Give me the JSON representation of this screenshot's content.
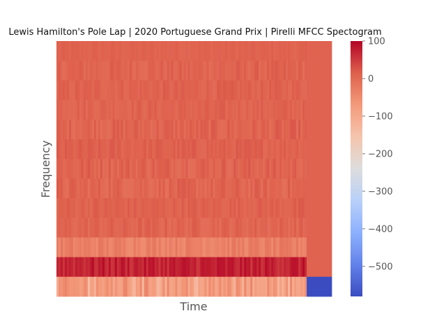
{
  "chart_data": {
    "type": "heatmap",
    "title": "Lewis Hamilton's Pole Lap | 2020 Portuguese Grand Prix | Pirelli MFCC Spectogram",
    "xlabel": "Time",
    "ylabel": "Frequency",
    "colormap": "coolwarm",
    "colorbar": {
      "min": -580,
      "max": 100,
      "ticks": [
        100,
        0,
        -100,
        -200,
        -300,
        -400,
        -500
      ],
      "tick_labels": [
        "100",
        "0",
        "−100",
        "−200",
        "−300",
        "−400",
        "−500"
      ]
    },
    "n_time_frames": 120,
    "padded_frames": 12,
    "rows_top_to_bottom": [
      {
        "mean": 10,
        "var": 3
      },
      {
        "mean": 8,
        "var": 6
      },
      {
        "mean": 10,
        "var": 5
      },
      {
        "mean": 9,
        "var": 5
      },
      {
        "mean": 8,
        "var": 7
      },
      {
        "mean": 12,
        "var": 5
      },
      {
        "mean": 10,
        "var": 7
      },
      {
        "mean": 6,
        "var": 7
      },
      {
        "mean": 11,
        "var": 5
      },
      {
        "mean": 7,
        "var": 6
      },
      {
        "mean": -32,
        "var": 8
      },
      {
        "mean": 72,
        "var": 10
      },
      {
        "mean": -68,
        "var": 14
      }
    ],
    "padding_values": [
      10,
      10,
      10,
      10,
      10,
      10,
      10,
      10,
      10,
      10,
      10,
      10,
      -580
    ]
  }
}
